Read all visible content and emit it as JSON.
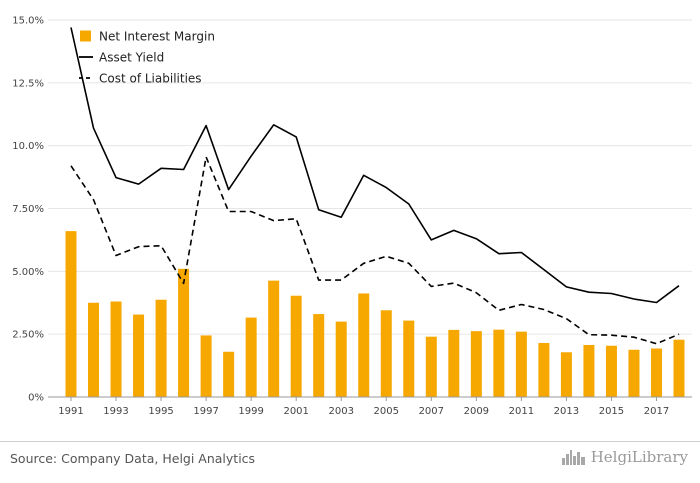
{
  "chart_data": {
    "type": "bar+line",
    "categories": [
      1991,
      1992,
      1993,
      1994,
      1995,
      1996,
      1997,
      1998,
      1999,
      2000,
      2001,
      2002,
      2003,
      2004,
      2005,
      2006,
      2007,
      2008,
      2009,
      2010,
      2011,
      2012,
      2013,
      2014,
      2015,
      2016,
      2017,
      2018
    ],
    "x_tick_labels": [
      "1991",
      "1993",
      "1995",
      "1997",
      "1999",
      "2001",
      "2003",
      "2005",
      "2007",
      "2009",
      "2011",
      "2013",
      "2015",
      "2017"
    ],
    "y_tick_labels": [
      "0%",
      "2.50%",
      "5.00%",
      "7.50%",
      "10.0%",
      "12.5%",
      "15.0%"
    ],
    "ylim": [
      0,
      15
    ],
    "grid": "horizontal",
    "legend_position": "top-left",
    "series": [
      {
        "name": "Net Interest Margin",
        "type": "bar",
        "color": "#f6a800",
        "values": [
          6.6,
          3.75,
          3.8,
          3.28,
          3.87,
          5.1,
          2.45,
          1.8,
          3.16,
          4.63,
          4.03,
          3.3,
          3.0,
          4.12,
          3.45,
          3.04,
          2.4,
          2.67,
          2.62,
          2.68,
          2.6,
          2.15,
          1.78,
          2.07,
          2.04,
          1.88,
          1.93,
          2.28
        ]
      },
      {
        "name": "Asset Yield",
        "type": "line",
        "style": "solid",
        "color": "#000000",
        "values": [
          14.7,
          10.7,
          8.73,
          8.47,
          9.1,
          9.05,
          10.8,
          8.25,
          9.58,
          10.83,
          10.35,
          7.45,
          7.15,
          8.82,
          8.33,
          7.68,
          6.25,
          6.63,
          6.3,
          5.7,
          5.75,
          5.07,
          4.38,
          4.17,
          4.12,
          3.9,
          3.76,
          4.43
        ]
      },
      {
        "name": "Cost of Liabilities",
        "type": "line",
        "style": "dashed",
        "color": "#000000",
        "values": [
          9.2,
          7.85,
          5.63,
          5.98,
          6.02,
          4.52,
          9.55,
          7.38,
          7.38,
          7.02,
          7.09,
          4.65,
          4.65,
          5.32,
          5.6,
          5.32,
          4.4,
          4.53,
          4.15,
          3.45,
          3.68,
          3.48,
          3.12,
          2.48,
          2.46,
          2.38,
          2.12,
          2.5
        ]
      }
    ]
  },
  "footer": {
    "source": "Source: Company Data, Helgi Analytics",
    "brand": "HelgiLibrary",
    "brand_icon": "skyline-icon"
  }
}
